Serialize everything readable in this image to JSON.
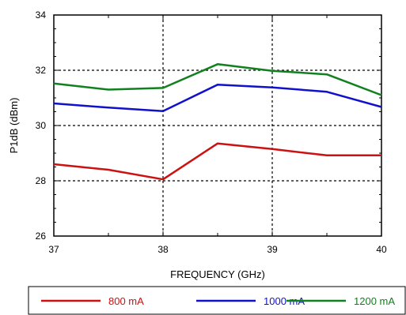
{
  "chart_data": {
    "type": "line",
    "xlabel": "FREQUENCY (GHz)",
    "ylabel": "P1dB (dBm)",
    "xlim": [
      37,
      40
    ],
    "ylim": [
      26,
      34
    ],
    "xticks": [
      37,
      38,
      39,
      40
    ],
    "yticks": [
      26,
      28,
      30,
      32,
      34
    ],
    "grid": "dashed at major ticks",
    "legend_position": "bottom",
    "x": [
      37,
      37.5,
      38,
      38.5,
      39,
      39.5,
      40
    ],
    "series": [
      {
        "name": "800 mA",
        "color": "#cc1111",
        "values": [
          28.6,
          28.4,
          28.05,
          29.35,
          29.15,
          28.92,
          28.92
        ]
      },
      {
        "name": "1000 mA",
        "color": "#1111cc",
        "values": [
          30.8,
          30.65,
          30.52,
          31.48,
          31.38,
          31.22,
          30.67
        ]
      },
      {
        "name": "1200 mA",
        "color": "#11801f",
        "values": [
          31.52,
          31.3,
          31.36,
          32.22,
          31.98,
          31.85,
          31.1
        ]
      }
    ]
  }
}
